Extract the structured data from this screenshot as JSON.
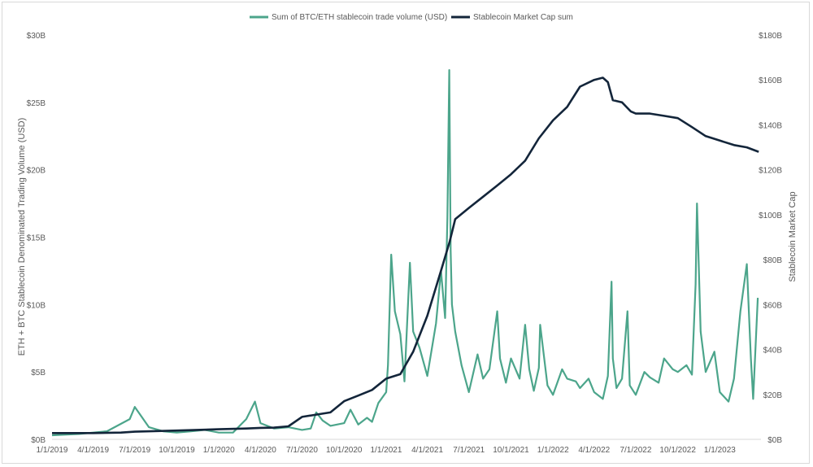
{
  "chart_data": {
    "type": "line",
    "legend_position": "top-center",
    "grid": false,
    "series": [
      {
        "name": "Sum of BTC/ETH stablecoin trade volume (USD)",
        "axis": "left",
        "color": "#4ca58b",
        "x": [
          "2019-01-01",
          "2019-03-01",
          "2019-05-01",
          "2019-06-20",
          "2019-07-01",
          "2019-08-01",
          "2019-09-01",
          "2019-10-01",
          "2019-11-01",
          "2019-12-01",
          "2020-01-01",
          "2020-02-01",
          "2020-03-01",
          "2020-03-20",
          "2020-04-01",
          "2020-05-01",
          "2020-06-01",
          "2020-07-01",
          "2020-07-20",
          "2020-08-01",
          "2020-08-15",
          "2020-09-01",
          "2020-10-01",
          "2020-10-15",
          "2020-11-01",
          "2020-11-20",
          "2020-12-01",
          "2020-12-15",
          "2021-01-01",
          "2021-01-05",
          "2021-01-12",
          "2021-01-20",
          "2021-02-01",
          "2021-02-10",
          "2021-02-22",
          "2021-03-01",
          "2021-03-15",
          "2021-04-01",
          "2021-04-20",
          "2021-05-01",
          "2021-05-10",
          "2021-05-15",
          "2021-05-19",
          "2021-05-22",
          "2021-05-25",
          "2021-06-01",
          "2021-06-15",
          "2021-07-01",
          "2021-07-20",
          "2021-08-01",
          "2021-08-15",
          "2021-09-01",
          "2021-09-07",
          "2021-09-20",
          "2021-10-01",
          "2021-10-20",
          "2021-11-01",
          "2021-11-10",
          "2021-11-20",
          "2021-12-01",
          "2021-12-04",
          "2021-12-20",
          "2022-01-01",
          "2022-01-21",
          "2022-02-01",
          "2022-02-20",
          "2022-03-01",
          "2022-03-20",
          "2022-04-01",
          "2022-04-20",
          "2022-05-01",
          "2022-05-09",
          "2022-05-12",
          "2022-05-20",
          "2022-06-01",
          "2022-06-13",
          "2022-06-18",
          "2022-07-01",
          "2022-07-20",
          "2022-08-01",
          "2022-08-20",
          "2022-09-01",
          "2022-09-20",
          "2022-10-01",
          "2022-10-20",
          "2022-11-01",
          "2022-11-09",
          "2022-11-12",
          "2022-11-20",
          "2022-12-01",
          "2022-12-20",
          "2023-01-01",
          "2023-01-20",
          "2023-02-01",
          "2023-02-15",
          "2023-03-01",
          "2023-03-10",
          "2023-03-15",
          "2023-03-25"
        ],
        "values": [
          0.3,
          0.4,
          0.6,
          1.5,
          2.4,
          0.9,
          0.6,
          0.5,
          0.6,
          0.7,
          0.5,
          0.5,
          1.5,
          2.8,
          1.2,
          0.8,
          0.9,
          0.7,
          0.8,
          2.0,
          1.4,
          1.0,
          1.2,
          2.2,
          1.1,
          1.6,
          1.3,
          2.7,
          3.5,
          5.5,
          13.7,
          9.5,
          7.8,
          4.3,
          13.1,
          8.0,
          6.8,
          4.7,
          8.6,
          12.5,
          9.0,
          16.4,
          27.4,
          14.0,
          10.0,
          8.0,
          5.5,
          3.5,
          6.3,
          4.5,
          5.2,
          9.5,
          6.0,
          4.2,
          6.0,
          4.5,
          8.5,
          5.2,
          3.6,
          5.3,
          8.5,
          4.0,
          3.3,
          5.2,
          4.5,
          4.3,
          3.8,
          4.5,
          3.5,
          3.0,
          4.7,
          11.7,
          6.0,
          3.8,
          4.5,
          9.5,
          4.0,
          3.3,
          5.0,
          4.6,
          4.2,
          6.0,
          5.2,
          5.0,
          5.5,
          4.8,
          11.5,
          17.5,
          8.0,
          5.0,
          6.5,
          3.5,
          2.8,
          4.5,
          9.5,
          13.0,
          6.0,
          3.0,
          10.5
        ]
      },
      {
        "name": "Stablecoin Market Cap sum",
        "axis": "right",
        "color": "#13253a",
        "x": [
          "2019-01-01",
          "2019-04-01",
          "2019-06-01",
          "2019-07-01",
          "2019-10-01",
          "2020-01-01",
          "2020-03-01",
          "2020-04-01",
          "2020-05-01",
          "2020-06-01",
          "2020-07-01",
          "2020-08-01",
          "2020-09-01",
          "2020-10-01",
          "2020-11-01",
          "2020-12-01",
          "2021-01-01",
          "2021-02-01",
          "2021-03-01",
          "2021-04-01",
          "2021-05-01",
          "2021-05-20",
          "2021-06-01",
          "2021-07-01",
          "2021-08-01",
          "2021-09-01",
          "2021-10-01",
          "2021-11-01",
          "2021-12-01",
          "2022-01-01",
          "2022-02-01",
          "2022-03-01",
          "2022-04-01",
          "2022-04-20",
          "2022-05-01",
          "2022-05-12",
          "2022-06-01",
          "2022-06-20",
          "2022-07-01",
          "2022-08-01",
          "2022-09-01",
          "2022-10-01",
          "2022-11-01",
          "2022-12-01",
          "2023-01-01",
          "2023-02-01",
          "2023-03-01",
          "2023-03-27"
        ],
        "values": [
          2.8,
          2.8,
          3.0,
          3.4,
          3.9,
          4.5,
          4.8,
          5.1,
          5.2,
          5.8,
          10.0,
          11.0,
          12.0,
          17.0,
          19.5,
          22.0,
          27.0,
          29.0,
          39.0,
          55.0,
          75.0,
          88.0,
          98.0,
          103.0,
          108.0,
          113.0,
          118.0,
          124.0,
          134.0,
          142.0,
          148.0,
          157.0,
          160.0,
          161.0,
          159.0,
          151.0,
          150.0,
          146.0,
          145.0,
          145.0,
          144.0,
          143.0,
          139.0,
          135.0,
          133.0,
          131.0,
          130.0,
          128.0
        ]
      }
    ],
    "x_ticks": [
      "1/1/2019",
      "4/1/2019",
      "7/1/2019",
      "10/1/2019",
      "1/1/2020",
      "4/1/2020",
      "7/1/2020",
      "10/1/2020",
      "1/1/2021",
      "4/1/2021",
      "7/1/2021",
      "10/1/2021",
      "1/1/2022",
      "4/1/2022",
      "7/1/2022",
      "10/1/2022",
      "1/1/2023"
    ],
    "x_tick_dates": [
      "2019-01-01",
      "2019-04-01",
      "2019-07-01",
      "2019-10-01",
      "2020-01-01",
      "2020-04-01",
      "2020-07-01",
      "2020-10-01",
      "2021-01-01",
      "2021-04-01",
      "2021-07-01",
      "2021-10-01",
      "2022-01-01",
      "2022-04-01",
      "2022-07-01",
      "2022-10-01",
      "2023-01-01"
    ],
    "xlim": [
      "2019-01-01",
      "2023-04-01"
    ],
    "y_left": {
      "label": "ETH + BTC Stablecoin Denominated Trading Volume (USD)",
      "ticks": [
        "$0B",
        "$5B",
        "$10B",
        "$15B",
        "$20B",
        "$25B",
        "$30B"
      ],
      "tick_values": [
        0,
        5,
        10,
        15,
        20,
        25,
        30
      ],
      "range": [
        0,
        30
      ]
    },
    "y_right": {
      "label": "Stablecoin Market Cap",
      "ticks": [
        "$0B",
        "$20B",
        "$40B",
        "$60B",
        "$80B",
        "$100B",
        "$120B",
        "$140B",
        "$160B",
        "$180B"
      ],
      "tick_values": [
        0,
        20,
        40,
        60,
        80,
        100,
        120,
        140,
        160,
        180
      ],
      "range": [
        0,
        180
      ]
    }
  }
}
